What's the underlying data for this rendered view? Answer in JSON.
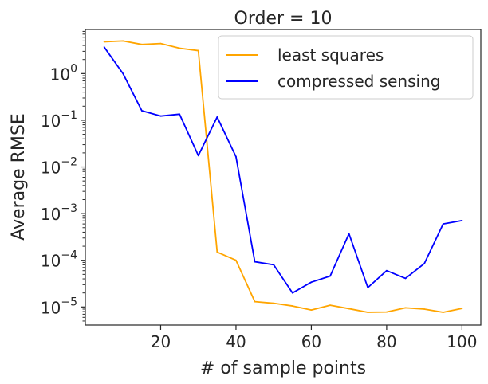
{
  "chart_data": {
    "type": "line",
    "title": "Order = 10",
    "xlabel": "# of sample points",
    "ylabel": "Average RMSE",
    "yscale": "log",
    "xlim": [
      0,
      105
    ],
    "ylim": [
      4.1e-06,
      8.8
    ],
    "xticks": [
      20,
      40,
      60,
      80,
      100
    ],
    "yticks": [
      1,
      0.1,
      0.01,
      0.001,
      0.0001,
      1e-05
    ],
    "ytick_labels": [
      {
        "base": "10",
        "exp": "0"
      },
      {
        "base": "10",
        "exp": "−1"
      },
      {
        "base": "10",
        "exp": "−2"
      },
      {
        "base": "10",
        "exp": "−3"
      },
      {
        "base": "10",
        "exp": "−4"
      },
      {
        "base": "10",
        "exp": "−5"
      }
    ],
    "grid": false,
    "legend_position": "upper-right",
    "x": [
      5,
      10,
      15,
      20,
      25,
      30,
      35,
      40,
      45,
      50,
      55,
      60,
      65,
      70,
      75,
      80,
      85,
      90,
      95,
      100
    ],
    "series": [
      {
        "name": "least squares",
        "color": "#ffa500",
        "values": [
          4.8,
          5.0,
          4.2,
          4.4,
          3.5,
          3.1,
          0.00015,
          0.0001,
          1.3e-05,
          1.2e-05,
          1.05e-05,
          8.6e-06,
          1.09e-05,
          9.2e-06,
          7.7e-06,
          7.8e-06,
          9.6e-06,
          9e-06,
          7.7e-06,
          9.3e-06
        ]
      },
      {
        "name": "compressed sensing",
        "color": "#0000ff",
        "values": [
          3.7,
          1.0,
          0.16,
          0.123,
          0.135,
          0.0175,
          0.117,
          0.0165,
          9.3e-05,
          8e-05,
          2e-05,
          3.4e-05,
          4.6e-05,
          0.00037,
          2.6e-05,
          6e-05,
          4.1e-05,
          8.5e-05,
          0.0006,
          0.00071
        ]
      }
    ]
  }
}
